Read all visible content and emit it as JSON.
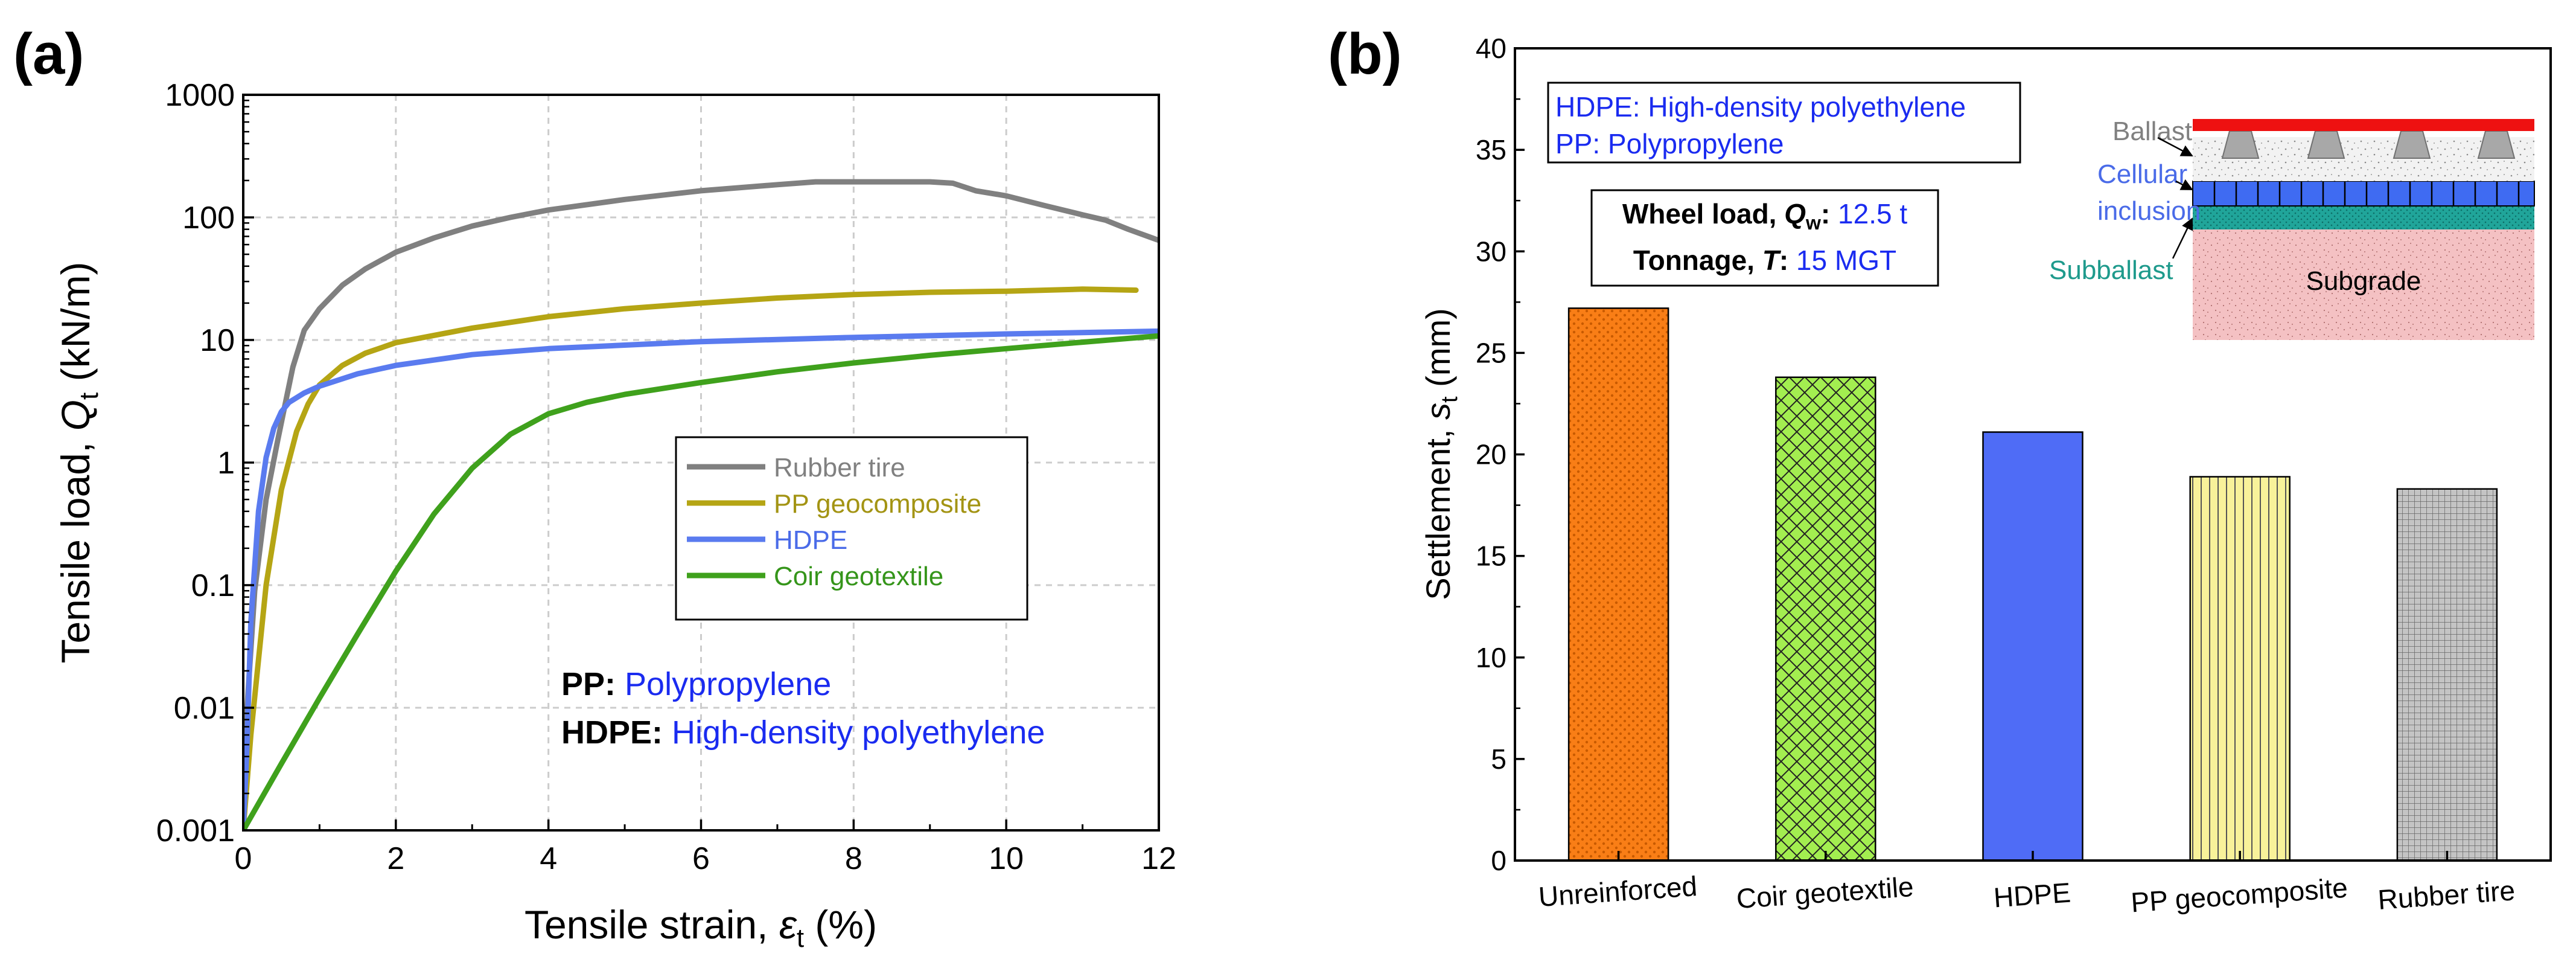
{
  "panel_a_label": "(a)",
  "panel_b_label": "(b)",
  "chart_data": [
    {
      "type": "line",
      "panel": "(a)",
      "xlabel": {
        "main": "Tensile strain, ",
        "sym": "ε",
        "sub": "t",
        "unit": " (%)"
      },
      "ylabel": {
        "main": "Tensile load, ",
        "sym": "Q",
        "sub": "t",
        "unit": " (kN/m)"
      },
      "xlim": [
        0,
        12
      ],
      "ylim": [
        0.001,
        1000
      ],
      "yscale": "log",
      "xticks": [
        "0",
        "2",
        "4",
        "6",
        "8",
        "10",
        "12"
      ],
      "yticks": [
        "0.001",
        "0.01",
        "0.1",
        "1",
        "10",
        "100",
        "1000"
      ],
      "grid": true,
      "legend_position": "center-right",
      "series": [
        {
          "name": "Rubber tire",
          "color": "#808080",
          "x": [
            0,
            0.05,
            0.15,
            0.3,
            0.45,
            0.55,
            0.65,
            0.8,
            1,
            1.3,
            1.6,
            2,
            2.5,
            3,
            3.5,
            4,
            5,
            6,
            7,
            7.5,
            8,
            9,
            9.3,
            9.6,
            10,
            10.5,
            11,
            11.3,
            11.6,
            12
          ],
          "y": [
            0.001,
            0.01,
            0.09,
            0.5,
            1.5,
            3,
            6,
            12,
            18,
            28,
            38,
            52,
            68,
            85,
            100,
            115,
            140,
            165,
            185,
            195,
            195,
            195,
            190,
            165,
            150,
            125,
            105,
            95,
            80,
            65
          ]
        },
        {
          "name": "PP geocomposite",
          "color": "#B5A514",
          "x": [
            0,
            0.1,
            0.3,
            0.5,
            0.7,
            0.85,
            1,
            1.3,
            1.6,
            2,
            3,
            4,
            5,
            6,
            7,
            8,
            9,
            10,
            11,
            11.7
          ],
          "y": [
            0.001,
            0.006,
            0.1,
            0.6,
            1.8,
            3,
            4.3,
            6.2,
            7.8,
            9.5,
            12.5,
            15.5,
            18,
            20,
            22,
            23.5,
            24.5,
            25,
            26,
            25.5
          ]
        },
        {
          "name": "HDPE",
          "color": "#5A7BEF",
          "x": [
            0,
            0.05,
            0.1,
            0.2,
            0.3,
            0.4,
            0.5,
            0.6,
            0.8,
            1,
            1.5,
            2,
            3,
            4,
            6,
            8,
            10,
            12
          ],
          "y": [
            0.001,
            0.005,
            0.05,
            0.4,
            1.1,
            1.9,
            2.6,
            3.1,
            3.7,
            4.2,
            5.3,
            6.2,
            7.6,
            8.5,
            9.7,
            10.5,
            11.2,
            11.8
          ]
        },
        {
          "name": "Coir geotextile",
          "color": "#3FA11C",
          "x": [
            0,
            0.5,
            1,
            1.5,
            2,
            2.5,
            3,
            3.5,
            4,
            4.5,
            5,
            6,
            7,
            8,
            9,
            10,
            11,
            12
          ],
          "y": [
            0.001,
            0.0035,
            0.012,
            0.04,
            0.13,
            0.38,
            0.9,
            1.7,
            2.5,
            3.1,
            3.6,
            4.5,
            5.5,
            6.5,
            7.5,
            8.5,
            9.6,
            10.8
          ]
        }
      ],
      "annotations": [
        {
          "bold": "PP:",
          "text": " Polypropylene"
        },
        {
          "bold": "HDPE:",
          "text": " High-density polyethylene"
        }
      ]
    },
    {
      "type": "bar",
      "panel": "(b)",
      "categories": [
        "Unreinforced",
        "Coir geotextile",
        "HDPE",
        "PP geocomposite",
        "Rubber tire"
      ],
      "values": [
        27.2,
        23.8,
        21.1,
        18.9,
        18.3
      ],
      "colors": [
        "#F97E16",
        "#A3EE50",
        "#4F6CF6",
        "#F8F29A",
        "#B8B8B8"
      ],
      "patterns": [
        "dots",
        "crosshatch",
        "solid",
        "vlines",
        "grid"
      ],
      "ylabel": {
        "main": "Settlement, ",
        "sym": "s",
        "sub": "t",
        "unit": " (mm)"
      },
      "ylim": [
        0,
        40
      ],
      "yticks": [
        "0",
        "5",
        "10",
        "15",
        "20",
        "25",
        "30",
        "35",
        "40"
      ],
      "legend_box": [
        "HDPE: High-density polyethylene",
        "PP: Polypropylene"
      ],
      "condition_box": {
        "wheel_label": "Wheel load, ",
        "wheel_sym": "Q",
        "wheel_sub": "w",
        "wheel_value": " 12.5 t",
        "tonnage_label": "Tonnage, ",
        "tonnage_sym": "T",
        "tonnage_value": " 15 MGT"
      },
      "schematic_labels": {
        "ballast": "Ballast",
        "cellular_1": "Cellular",
        "cellular_2": "inclusion",
        "subballast": "Subballast",
        "subgrade": "Subgrade"
      }
    }
  ]
}
